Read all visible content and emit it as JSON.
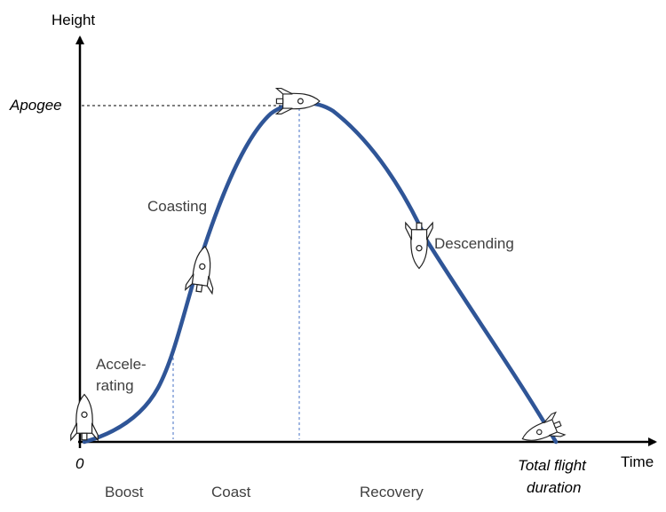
{
  "axes": {
    "y_title": "Height",
    "x_title": "Time",
    "origin": "0",
    "apogee": "Apogee",
    "end_line1": "Total flight",
    "end_line2": "duration"
  },
  "annotations": {
    "accelerating_line1": "Accele-",
    "accelerating_line2": "rating",
    "coasting": "Coasting",
    "descending": "Descending"
  },
  "phases": {
    "boost": "Boost",
    "coast": "Coast",
    "recovery": "Recovery"
  },
  "colors": {
    "trajectory": "#2f5597",
    "guides": "#4472c4",
    "axis": "#000000"
  },
  "icons": [
    "rocket-icon"
  ]
}
